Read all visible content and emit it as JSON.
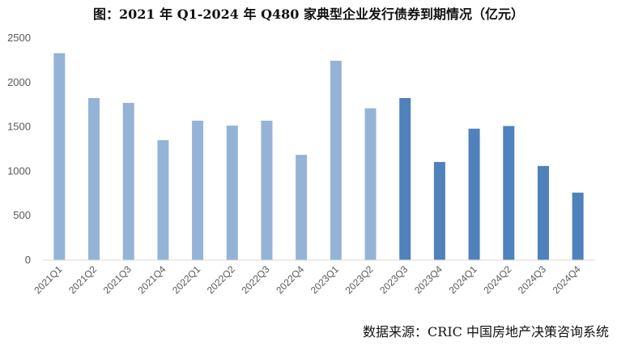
{
  "chart_data": {
    "type": "bar",
    "title": "图：2021 年 Q1-2024 年 Q480 家典型企业发行债券到期情况（亿元）",
    "source": "数据来源：CRIC 中国房地产决策咨询系统",
    "categories": [
      "2021Q1",
      "2021Q2",
      "2021Q3",
      "2021Q4",
      "2022Q1",
      "2022Q2",
      "2022Q3",
      "2022Q4",
      "2023Q1",
      "2023Q2",
      "2023Q3",
      "2023Q4",
      "2024Q1",
      "2024Q2",
      "2024Q3",
      "2024Q4"
    ],
    "values": [
      2330,
      1825,
      1770,
      1350,
      1570,
      1515,
      1570,
      1185,
      2245,
      1710,
      1825,
      1105,
      1480,
      1510,
      1060,
      760
    ],
    "ylim": [
      0,
      2500
    ],
    "yticks": [
      0,
      500,
      1000,
      1500,
      2000,
      2500
    ],
    "grid": false,
    "colors": {
      "past": "#95b3d7",
      "future": "#4f81bd",
      "axis": "#d9d9d9"
    },
    "highlight_from_index": 10
  }
}
